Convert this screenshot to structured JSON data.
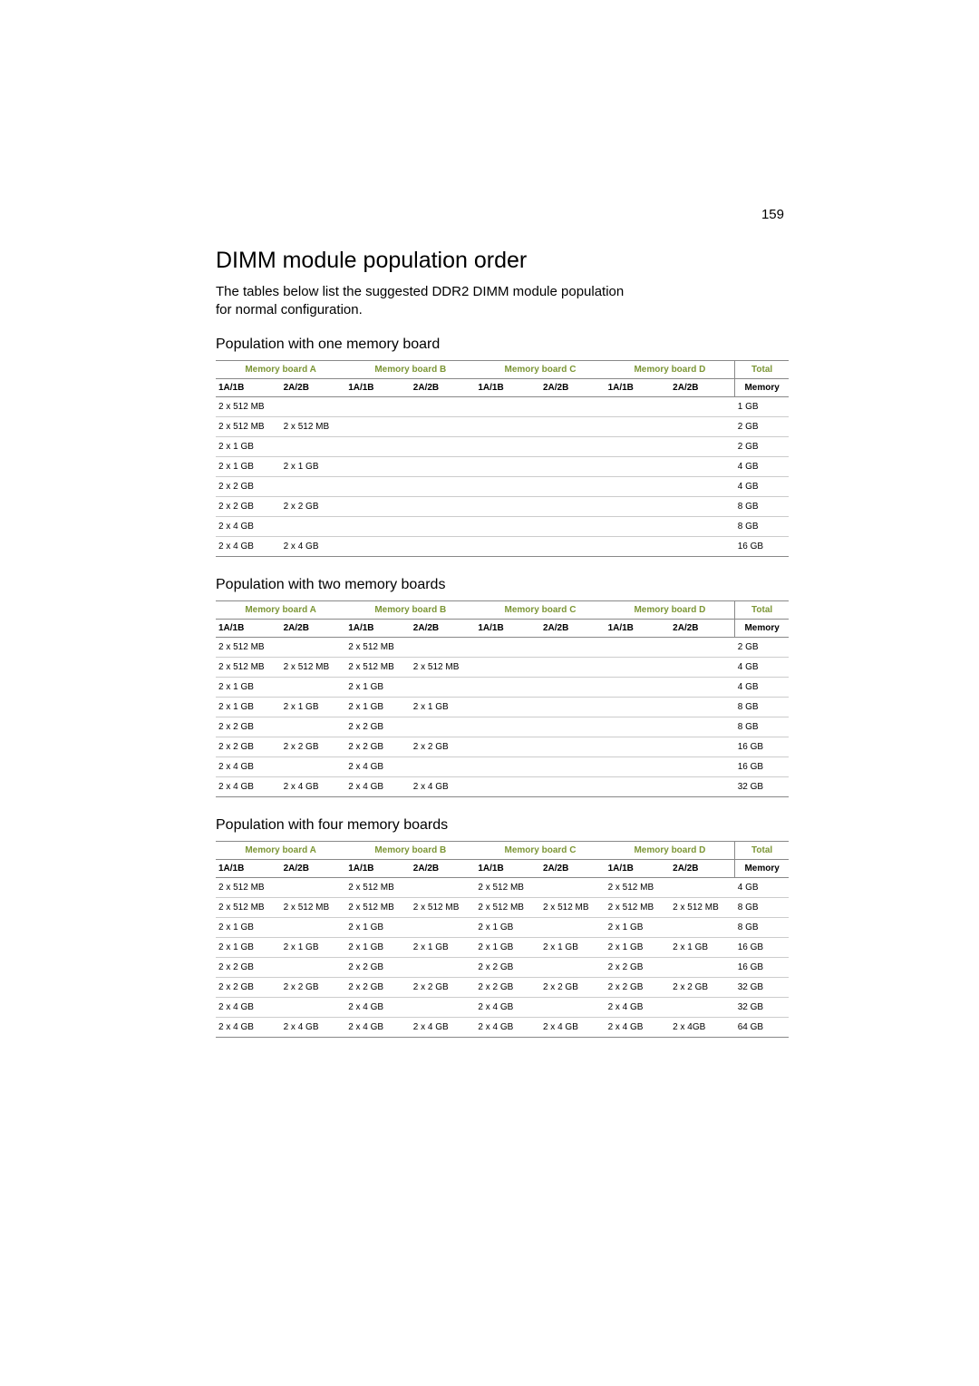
{
  "page_number": "159",
  "heading": "DIMM module population order",
  "intro": "The tables below list the suggested DDR2 DIMM module population for normal configuration.",
  "accent_color": "#7c9636",
  "board_headers": [
    "Memory board A",
    "Memory board B",
    "Memory board C",
    "Memory board D"
  ],
  "total_header_top": "Total",
  "total_header_sub": "Memory",
  "slot_labels": [
    "1A/1B",
    "2A/2B"
  ],
  "tables": [
    {
      "caption": "Population with one memory board",
      "rows": [
        {
          "slots": [
            "2 x 512 MB",
            "",
            "",
            "",
            "",
            "",
            "",
            ""
          ],
          "total": "1 GB"
        },
        {
          "slots": [
            "2 x 512 MB",
            "2 x 512 MB",
            "",
            "",
            "",
            "",
            "",
            ""
          ],
          "total": "2 GB"
        },
        {
          "slots": [
            "2 x 1 GB",
            "",
            "",
            "",
            "",
            "",
            "",
            ""
          ],
          "total": "2 GB"
        },
        {
          "slots": [
            "2 x 1 GB",
            "2 x 1 GB",
            "",
            "",
            "",
            "",
            "",
            ""
          ],
          "total": "4 GB"
        },
        {
          "slots": [
            "2 x 2 GB",
            "",
            "",
            "",
            "",
            "",
            "",
            ""
          ],
          "total": "4 GB"
        },
        {
          "slots": [
            "2 x 2 GB",
            "2 x 2 GB",
            "",
            "",
            "",
            "",
            "",
            ""
          ],
          "total": "8 GB"
        },
        {
          "slots": [
            "2 x 4 GB",
            "",
            "",
            "",
            "",
            "",
            "",
            ""
          ],
          "total": "8 GB"
        },
        {
          "slots": [
            "2 x 4 GB",
            "2 x 4 GB",
            "",
            "",
            "",
            "",
            "",
            ""
          ],
          "total": "16 GB"
        }
      ]
    },
    {
      "caption": "Population with two memory boards",
      "rows": [
        {
          "slots": [
            "2 x 512 MB",
            "",
            "2 x 512 MB",
            "",
            "",
            "",
            "",
            ""
          ],
          "total": "2 GB"
        },
        {
          "slots": [
            "2 x 512 MB",
            "2 x 512 MB",
            "2 x 512 MB",
            "2 x 512 MB",
            "",
            "",
            "",
            ""
          ],
          "total": "4 GB"
        },
        {
          "slots": [
            "2 x 1 GB",
            "",
            "2 x 1 GB",
            "",
            "",
            "",
            "",
            ""
          ],
          "total": "4 GB"
        },
        {
          "slots": [
            "2 x 1 GB",
            "2 x 1 GB",
            "2 x 1 GB",
            "2 x 1 GB",
            "",
            "",
            "",
            ""
          ],
          "total": "8 GB"
        },
        {
          "slots": [
            "2 x 2 GB",
            "",
            "2 x 2 GB",
            "",
            "",
            "",
            "",
            ""
          ],
          "total": "8 GB"
        },
        {
          "slots": [
            "2 x 2 GB",
            "2 x 2 GB",
            "2 x 2 GB",
            "2 x 2 GB",
            "",
            "",
            "",
            ""
          ],
          "total": "16 GB"
        },
        {
          "slots": [
            "2 x 4 GB",
            "",
            "2 x 4 GB",
            "",
            "",
            "",
            "",
            ""
          ],
          "total": "16 GB"
        },
        {
          "slots": [
            "2 x 4 GB",
            "2 x 4 GB",
            "2 x 4 GB",
            "2 x 4 GB",
            "",
            "",
            "",
            ""
          ],
          "total": "32 GB"
        }
      ]
    },
    {
      "caption": "Population with four memory boards",
      "rows": [
        {
          "slots": [
            "2 x 512 MB",
            "",
            "2 x 512 MB",
            "",
            "2 x 512 MB",
            "",
            "2 x 512 MB",
            ""
          ],
          "total": "4 GB"
        },
        {
          "slots": [
            "2 x 512 MB",
            "2 x 512 MB",
            "2 x 512 MB",
            "2 x 512 MB",
            "2 x 512 MB",
            "2 x 512 MB",
            "2 x 512 MB",
            "2 x 512 MB"
          ],
          "total": "8 GB"
        },
        {
          "slots": [
            "2 x 1 GB",
            "",
            "2 x 1 GB",
            "",
            "2 x 1 GB",
            "",
            "2 x 1 GB",
            ""
          ],
          "total": "8 GB"
        },
        {
          "slots": [
            "2 x 1 GB",
            "2 x 1 GB",
            "2 x 1 GB",
            "2 x 1 GB",
            "2 x 1 GB",
            "2 x 1 GB",
            "2 x 1 GB",
            "2 x 1 GB"
          ],
          "total": "16 GB"
        },
        {
          "slots": [
            "2 x 2 GB",
            "",
            "2 x 2 GB",
            "",
            "2 x 2 GB",
            "",
            "2 x 2 GB",
            ""
          ],
          "total": "16 GB"
        },
        {
          "slots": [
            "2 x 2 GB",
            "2 x 2 GB",
            "2 x 2 GB",
            "2 x 2 GB",
            "2 x 2 GB",
            "2 x 2 GB",
            "2 x 2 GB",
            "2 x 2 GB"
          ],
          "total": "32 GB"
        },
        {
          "slots": [
            "2 x 4 GB",
            "",
            "2 x 4 GB",
            "",
            "2 x 4 GB",
            "",
            "2 x 4 GB",
            ""
          ],
          "total": "32 GB"
        },
        {
          "slots": [
            "2 x 4 GB",
            "2 x 4 GB",
            "2 x 4 GB",
            "2 x 4 GB",
            "2 x 4 GB",
            "2 x 4 GB",
            "2 x 4 GB",
            "2 x 4GB"
          ],
          "total": "64 GB"
        }
      ]
    }
  ]
}
